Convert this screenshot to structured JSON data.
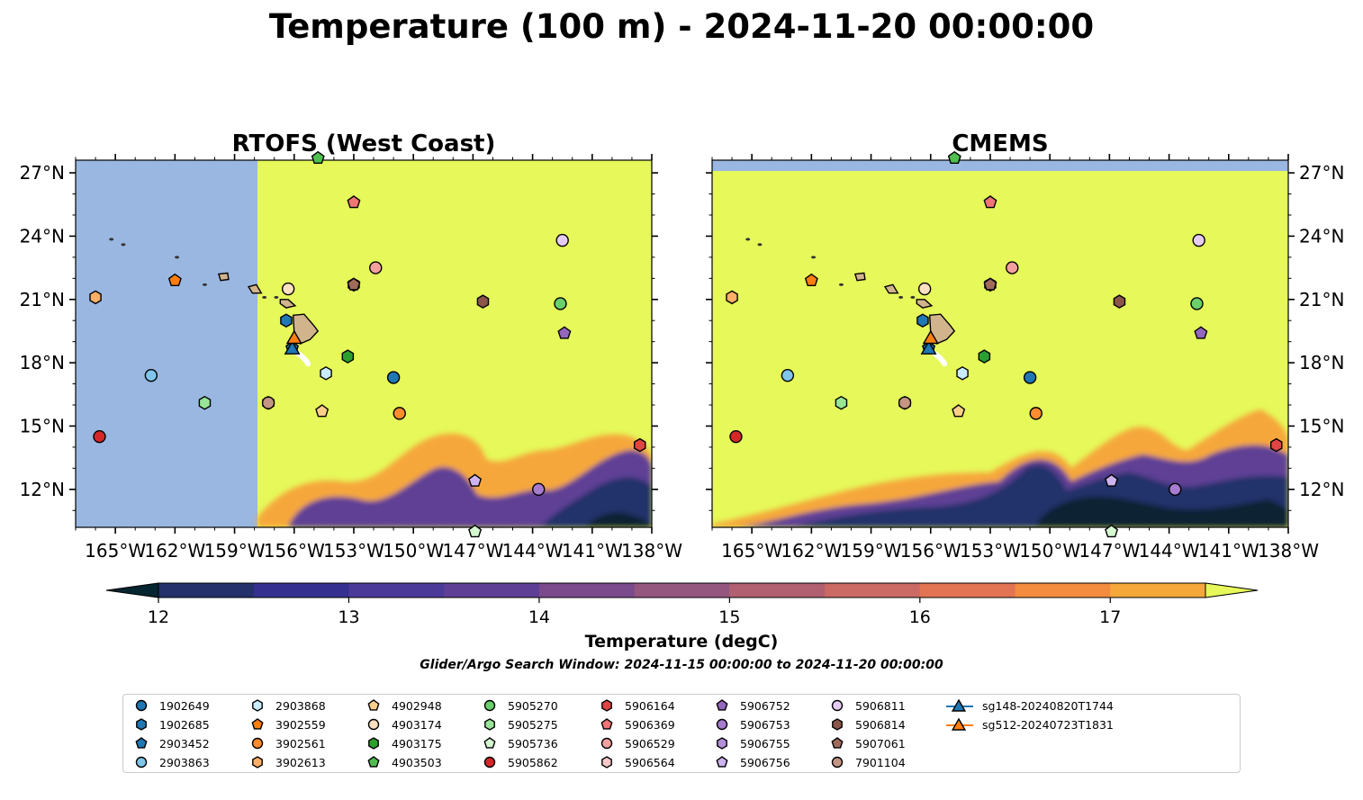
{
  "figure": {
    "title": "Temperature (100 m) - 2024-11-20 00:00:00",
    "subtitle": "Glider/Argo Search Window: 2024-11-15 00:00:00 to 2024-11-20 00:00:00",
    "colors": {
      "land_mask": "#99b7e0",
      "island": "#d2b48c",
      "warm": "#e6f85a"
    }
  },
  "chart_data": [
    {
      "type": "heatmap",
      "title": "RTOFS (West Coast)",
      "xlim": [
        -167,
        -138
      ],
      "ylim": [
        10.2,
        27.6
      ],
      "x_ticks": [
        -165,
        -162,
        -159,
        -156,
        -153,
        -150,
        -147,
        -144,
        -141,
        -138
      ],
      "x_tick_labels": [
        "165°W",
        "162°W",
        "159°W",
        "156°W",
        "153°W",
        "150°W",
        "147°W",
        "144°W",
        "141°W",
        "138°W"
      ],
      "y_ticks": [
        12,
        15,
        18,
        21,
        24,
        27
      ],
      "y_tick_labels": [
        "12°N",
        "15°N",
        "18°N",
        "21°N",
        "24°N",
        "27°N"
      ],
      "y_axis_side": "left",
      "no_data_west_of": -157.9
    },
    {
      "type": "heatmap",
      "title": "CMEMS",
      "xlim": [
        -167,
        -138
      ],
      "ylim": [
        10.2,
        27.6
      ],
      "x_ticks": [
        -165,
        -162,
        -159,
        -156,
        -153,
        -150,
        -147,
        -144,
        -141,
        -138
      ],
      "x_tick_labels": [
        "165°W",
        "162°W",
        "159°W",
        "156°W",
        "153°W",
        "150°W",
        "147°W",
        "144°W",
        "141°W",
        "138°W"
      ],
      "y_ticks": [
        12,
        15,
        18,
        21,
        24,
        27
      ],
      "y_tick_labels": [
        "12°N",
        "15°N",
        "18°N",
        "21°N",
        "24°N",
        "27°N"
      ],
      "y_axis_side": "right",
      "no_data_north_of": 27.1
    }
  ],
  "colorbar": {
    "label": "Temperature (degC)",
    "min": 11.75,
    "max": 17.75,
    "ticks": [
      12,
      13,
      14,
      15,
      16,
      17
    ],
    "tick_labels": [
      "12",
      "13",
      "14",
      "15",
      "16",
      "17"
    ],
    "levels": [
      12,
      12.5,
      13,
      13.5,
      14,
      14.5,
      15,
      15.5,
      16,
      16.5,
      17,
      17.5
    ],
    "colors": [
      "#0d2430",
      "#24316b",
      "#352f8f",
      "#4b3a98",
      "#5e3f95",
      "#7a4a8c",
      "#94567f",
      "#b06070",
      "#cb6a64",
      "#e27453",
      "#f48c40",
      "#f6a73a",
      "#f6c63f"
    ],
    "under_color": "#052530",
    "over_color": "#e6f85a"
  },
  "platforms": [
    {
      "id": "1902649",
      "lon": -151.0,
      "lat": 17.3,
      "marker": "circle",
      "color": "#1f77b4"
    },
    {
      "id": "1902685",
      "lon": -156.4,
      "lat": 20.0,
      "marker": "hexagon",
      "color": "#1f77b4"
    },
    {
      "id": "2903452",
      "lon": -156.1,
      "lat": 18.7,
      "marker": "pentagon",
      "color": "#1f77b4"
    },
    {
      "id": "2903863",
      "lon": -163.2,
      "lat": 17.4,
      "marker": "circle",
      "color": "#7fc5ec"
    },
    {
      "id": "2903868",
      "lon": -154.4,
      "lat": 17.5,
      "marker": "hexagon",
      "color": "#c9ecfb"
    },
    {
      "id": "3902559",
      "lon": -162.0,
      "lat": 21.9,
      "marker": "pentagon",
      "color": "#ff7f0e"
    },
    {
      "id": "3902561",
      "lon": -150.7,
      "lat": 15.6,
      "marker": "circle",
      "color": "#ff8c2e"
    },
    {
      "id": "3902613",
      "lon": -166.0,
      "lat": 21.1,
      "marker": "hexagon",
      "color": "#ffb066"
    },
    {
      "id": "4902948",
      "lon": -154.6,
      "lat": 15.7,
      "marker": "pentagon",
      "color": "#ffd08a"
    },
    {
      "id": "4903174",
      "lon": -156.3,
      "lat": 21.5,
      "marker": "circle",
      "color": "#ffe0c0"
    },
    {
      "id": "4903175",
      "lon": -153.3,
      "lat": 18.3,
      "marker": "hexagon",
      "color": "#2ca02c"
    },
    {
      "id": "4903503",
      "lon": -154.8,
      "lat": 27.7,
      "marker": "pentagon",
      "color": "#4fbf4f"
    },
    {
      "id": "5905270",
      "lon": -142.6,
      "lat": 20.8,
      "marker": "circle",
      "color": "#6bcf6b"
    },
    {
      "id": "5905275",
      "lon": -160.5,
      "lat": 16.1,
      "marker": "hexagon",
      "color": "#98e598"
    },
    {
      "id": "5905736",
      "lon": -146.9,
      "lat": 10.0,
      "marker": "pentagon",
      "color": "#d5f8d0"
    },
    {
      "id": "5905862",
      "lon": -165.8,
      "lat": 14.5,
      "marker": "circle",
      "color": "#d62728"
    },
    {
      "id": "5906164",
      "lon": -138.6,
      "lat": 14.1,
      "marker": "hexagon",
      "color": "#e04545"
    },
    {
      "id": "5906369",
      "lon": -153.0,
      "lat": 25.6,
      "marker": "pentagon",
      "color": "#f07575"
    },
    {
      "id": "5906529",
      "lon": -151.9,
      "lat": 22.5,
      "marker": "circle",
      "color": "#f4a0a0"
    },
    {
      "id": "5906564",
      "lon": -157.3,
      "lat": 16.1,
      "marker": "hexagon",
      "color": "#f8c8c8"
    },
    {
      "id": "5906752",
      "lon": -142.4,
      "lat": 19.4,
      "marker": "pentagon",
      "color": "#9467bd"
    },
    {
      "id": "5906753",
      "lon": -143.7,
      "lat": 12.0,
      "marker": "circle",
      "color": "#a77bd0"
    },
    {
      "id": "5906755",
      "lon": -153.0,
      "lat": 21.7,
      "marker": "hexagon",
      "color": "#b48fd9"
    },
    {
      "id": "5906756",
      "lon": -146.9,
      "lat": 12.4,
      "marker": "pentagon",
      "color": "#cdb3ef"
    },
    {
      "id": "5906811",
      "lon": -142.5,
      "lat": 23.8,
      "marker": "circle",
      "color": "#e6ccf5"
    },
    {
      "id": "5906814",
      "lon": -146.5,
      "lat": 20.9,
      "marker": "hexagon",
      "color": "#8c564b"
    },
    {
      "id": "5907061",
      "lon": -153.0,
      "lat": 21.7,
      "marker": "pentagon",
      "color": "#a06b5a"
    },
    {
      "id": "7901104",
      "lon": -157.3,
      "lat": 16.1,
      "marker": "circle",
      "color": "#c49484"
    },
    {
      "id": "sg148-20240820T1744",
      "lon": -156.1,
      "lat": 18.7,
      "marker": "triangle",
      "color": "#1f77b4",
      "track": true
    },
    {
      "id": "sg512-20240723T1831",
      "lon": -156.0,
      "lat": 19.2,
      "marker": "triangle",
      "color": "#ff7f0e",
      "track": true
    }
  ],
  "islands": [
    {
      "name": "Hawaii",
      "lon": -155.5,
      "lat": 19.6
    },
    {
      "name": "Maui",
      "lon": -156.3,
      "lat": 20.8
    },
    {
      "name": "Oahu",
      "lon": -158.0,
      "lat": 21.5
    },
    {
      "name": "Kauai",
      "lon": -159.5,
      "lat": 22.05
    }
  ]
}
